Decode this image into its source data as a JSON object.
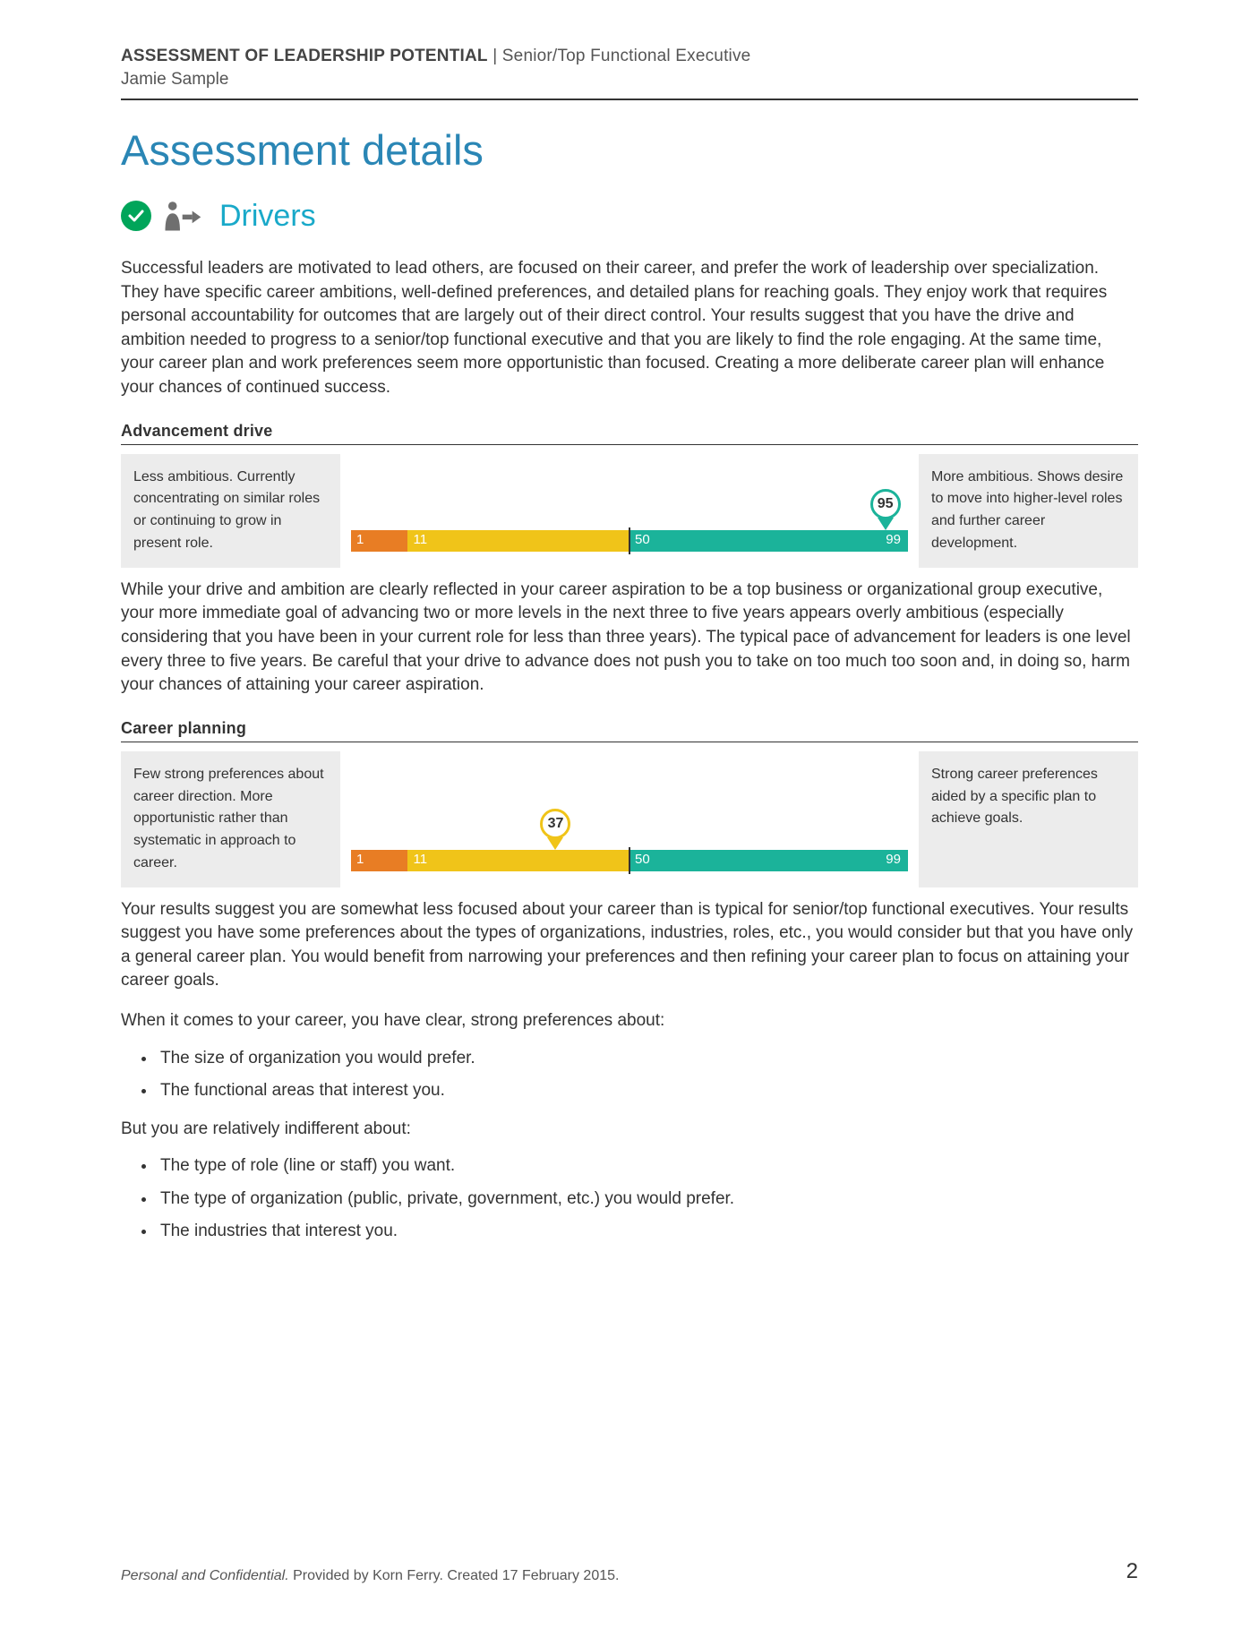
{
  "header": {
    "title_bold": "ASSESSMENT OF LEADERSHIP POTENTIAL",
    "title_rest": " | Senior/Top Functional Executive",
    "subject": "Jamie Sample"
  },
  "page_title": {
    "text": "Assessment details",
    "color": "#2a86b5"
  },
  "section": {
    "title": "Drivers",
    "title_color": "#19a9c9",
    "check_color": "#00a55a",
    "person_color": "#6f6f6f",
    "arrow_color": "#6f6f6f"
  },
  "intro": "Successful leaders are motivated to lead others, are focused on their career, and prefer the work of leadership over specialization. They have specific career ambitions, well-defined preferences, and detailed plans for reaching goals. They enjoy work that requires personal accountability for outcomes that are largely out of their direct control. Your results suggest that you have the drive and ambition needed to progress to a senior/top functional executive and that you are likely to find the role engaging. At the same time, your career plan and work preferences seem more opportunistic than focused. Creating a more deliberate career plan will enhance your chances of continued success.",
  "scale": {
    "min": 1,
    "max": 99,
    "lbl_1": "1",
    "lbl_11": "11",
    "lbl_50": "50",
    "lbl_99": "99",
    "seg1_start": 1,
    "seg1_end": 11,
    "seg2_start": 11,
    "seg2_end": 50,
    "seg3_start": 50,
    "seg3_end": 99,
    "seg1_color": "#e87d24",
    "seg2_color": "#f0c419",
    "seg3_color": "#1bb39a",
    "tick_color": "#333333"
  },
  "dim1": {
    "title": "Advancement drive",
    "left": "Less ambitious. Currently concentrating on similar roles or continuing to grow in present role.",
    "right": "More ambitious. Shows desire to move into higher-level roles and further career development.",
    "marker_value": 95,
    "marker_label": "95",
    "marker_color": "#1bb39a",
    "body": "While your drive and ambition are clearly reflected in your career aspiration to be a top business or organizational group executive, your more immediate goal of advancing two or more levels in the next three to five years appears overly ambitious (especially considering that you have been in your current role for less than three years). The typical pace of advancement for leaders is one level every three to five years. Be careful that your drive to advance does not push you to take on too much too soon and, in doing so, harm your chances of attaining your career aspiration."
  },
  "dim2": {
    "title": "Career planning",
    "left": "Few strong preferences about career direction. More opportunistic rather than systematic in approach to career.",
    "right": "Strong career preferences aided by a specific plan to achieve goals.",
    "marker_value": 37,
    "marker_label": "37",
    "marker_color": "#f0c419",
    "body1": "Your results suggest you are somewhat less focused about your career than is typical for senior/top functional executives. Your results suggest you have some preferences about the types of organizations, industries, roles, etc., you would consider but that you have only a general career plan. You would benefit from narrowing your preferences and then refining your career plan to focus on attaining your career goals.",
    "body2": "When it comes to your career, you have clear, strong preferences about:",
    "prefs_strong": [
      "The size of organization you would prefer.",
      "The functional areas that interest you."
    ],
    "body3": "But you are relatively indifferent about:",
    "prefs_indiff": [
      "The type of role (line or staff) you want.",
      "The type of organization (public, private, government, etc.) you would prefer.",
      "The industries that interest you."
    ]
  },
  "footer": {
    "ital": "Personal and Confidential.",
    "rest": " Provided by Korn Ferry. Created 17 February 2015.",
    "page_num": "2"
  }
}
